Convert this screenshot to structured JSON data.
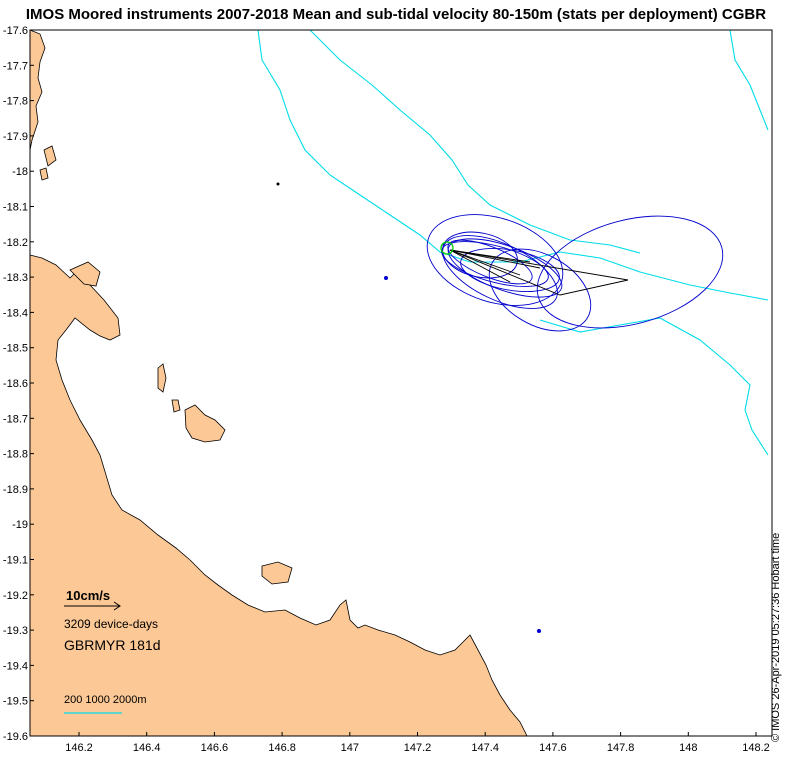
{
  "title": "IMOS Moored instruments 2007-2018 Mean and sub-tidal velocity 80-150m (stats per deployment) CGBR",
  "credit": "© IMOS 26-Apr-2019 05:27:36 Hobart time",
  "legend": {
    "velocity_scale_label": "10cm/s",
    "device_days": "3209 device-days",
    "site": "GBRMYR 181d",
    "isobaths_label": "200 1000 2000m"
  },
  "axes": {
    "lon_ticks": [
      "146.2",
      "146.4",
      "146.6",
      "146.8",
      "147",
      "147.2",
      "147.4",
      "147.6",
      "147.8",
      "148",
      "148.2"
    ],
    "lat_ticks": [
      "-17.6",
      "-17.7",
      "-17.8",
      "-17.9",
      "-18",
      "-18.1",
      "-18.2",
      "-18.3",
      "-18.4",
      "-18.5",
      "-18.6",
      "-18.7",
      "-18.8",
      "-18.9",
      "-19",
      "-19.1",
      "-19.2",
      "-19.3",
      "-19.4",
      "-19.5",
      "-19.6"
    ]
  },
  "colors": {
    "land": "#fbc896",
    "isobath": "#00dde8",
    "ellipse": "#0000cc",
    "mean_vector": "#000000",
    "site_marker": "#00cc00"
  }
}
